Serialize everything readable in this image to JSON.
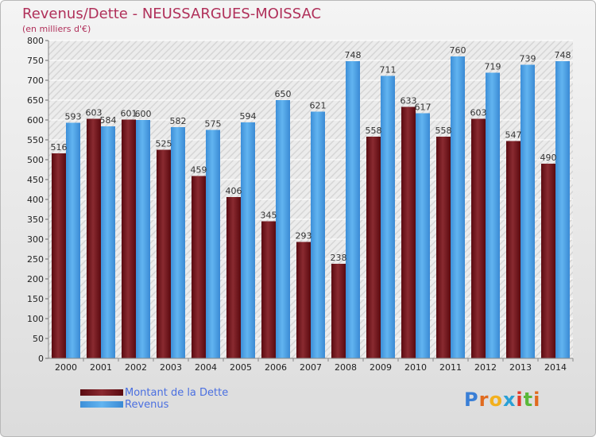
{
  "chart_data": {
    "type": "bar",
    "title": "Revenus/Dette - NEUSSARGUES-MOISSAC",
    "subtitle": "(en milliers d'€)",
    "categories": [
      "2000",
      "2001",
      "2002",
      "2003",
      "2004",
      "2005",
      "2006",
      "2007",
      "2008",
      "2009",
      "2010",
      "2011",
      "2012",
      "2013",
      "2014"
    ],
    "series": [
      {
        "name": "Montant de la Dette",
        "color": "#7a1c22",
        "values": [
          516,
          603,
          601,
          525,
          459,
          406,
          345,
          293,
          238,
          558,
          633,
          558,
          603,
          547,
          490
        ]
      },
      {
        "name": "Revenus",
        "color": "#4ea3e8",
        "values": [
          593,
          584,
          600,
          582,
          575,
          594,
          650,
          621,
          748,
          711,
          617,
          760,
          719,
          739,
          748
        ]
      }
    ],
    "ylim": [
      0,
      800
    ],
    "yticks": [
      0,
      50,
      100,
      150,
      200,
      250,
      300,
      350,
      400,
      450,
      500,
      550,
      600,
      650,
      700,
      750,
      800
    ],
    "grid": true,
    "legend_position": "bottom-left"
  },
  "logo": {
    "letters": [
      "P",
      "r",
      "o",
      "x",
      "i",
      "t",
      "i"
    ],
    "colors": [
      "#3a7fd6",
      "#e06a1e",
      "#f2b01e",
      "#2aa0d6",
      "#e23a2a",
      "#5ab83a",
      "#e06a1e"
    ]
  }
}
